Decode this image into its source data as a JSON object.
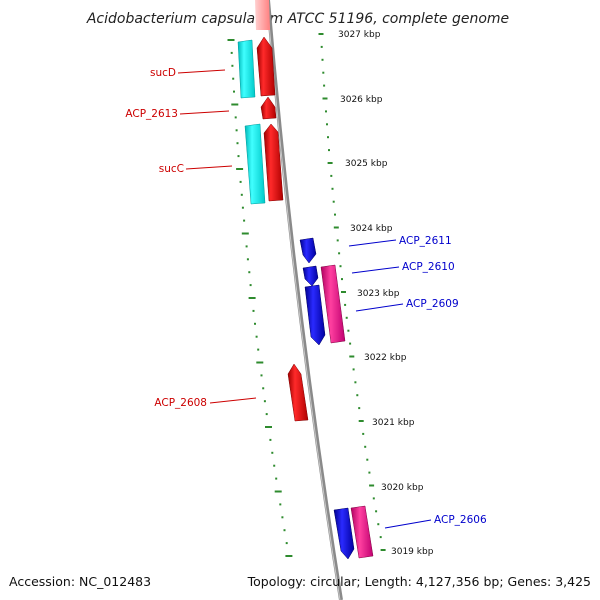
{
  "title": "Acidobacterium capsulatum ATCC 51196, complete genome",
  "footer": {
    "accession": "Accession: NC_012483",
    "topology": "Topology: circular; Length: 4,127,356 bp; Genes: 3,425"
  },
  "colors": {
    "backbone": "#8a8a8a",
    "ticks": "#2e8b2e",
    "cds_forward_red": "#ff0000",
    "cds_reverse_blue": "#0000ff",
    "rna_cyan": "#00ffff",
    "rna_magenta": "#ff1493",
    "label_forward": "#cc0000",
    "label_reverse": "#0000cc"
  },
  "ruler_ticks": [
    {
      "label": "3027 kbp"
    },
    {
      "label": "3026 kbp"
    },
    {
      "label": "3025 kbp"
    },
    {
      "label": "3024 kbp"
    },
    {
      "label": "3023 kbp"
    },
    {
      "label": "3022 kbp"
    },
    {
      "label": "3021 kbp"
    },
    {
      "label": "3020 kbp"
    },
    {
      "label": "3019 kbp"
    }
  ],
  "gene_labels": [
    {
      "text": "sucD",
      "strand": "forward"
    },
    {
      "text": "ACP_2613",
      "strand": "forward"
    },
    {
      "text": "sucC",
      "strand": "forward"
    },
    {
      "text": "ACP_2611",
      "strand": "reverse"
    },
    {
      "text": "ACP_2610",
      "strand": "reverse"
    },
    {
      "text": "ACP_2609",
      "strand": "reverse"
    },
    {
      "text": "ACP_2608",
      "strand": "forward"
    },
    {
      "text": "ACP_2606",
      "strand": "reverse"
    }
  ]
}
